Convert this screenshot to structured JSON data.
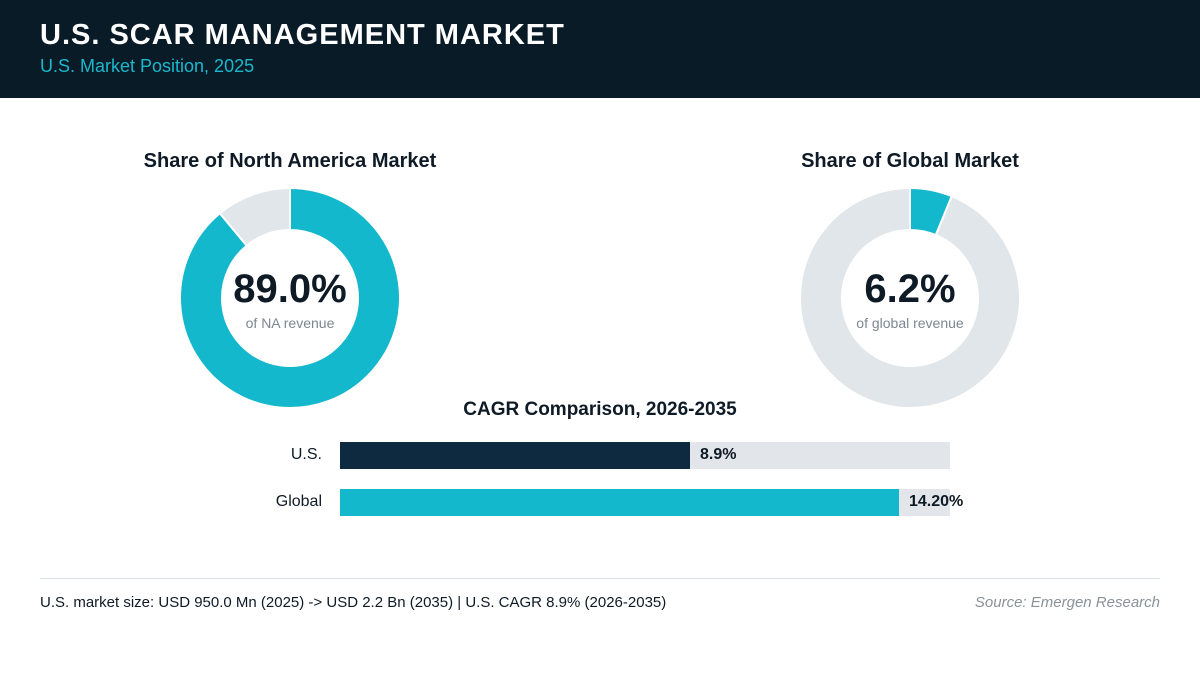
{
  "header": {
    "title": "U.S. SCAR MANAGEMENT MARKET",
    "subtitle": "U.S. Market Position, 2025"
  },
  "colors": {
    "header_bg": "#0a1b28",
    "accent": "#14b8cc",
    "dark_bar": "#0e2a40",
    "track": "#e1e6ea"
  },
  "chart_data": [
    {
      "type": "pie",
      "title": "Share of North America Market",
      "value_label": "89.0%",
      "caption": "of NA revenue",
      "share": 89.0,
      "slices": [
        {
          "value": 89.0,
          "color": "#14b8cc"
        },
        {
          "value": 11.0,
          "color": "#e1e6ea"
        }
      ]
    },
    {
      "type": "pie",
      "title": "Share of Global Market",
      "value_label": "6.2%",
      "caption": "of global revenue",
      "share": 6.2,
      "slices": [
        {
          "value": 6.2,
          "color": "#14b8cc"
        },
        {
          "value": 93.8,
          "color": "#e1e6ea"
        }
      ]
    },
    {
      "type": "bar",
      "title": "CAGR Comparison, 2026-2035",
      "categories": [
        "U.S.",
        "Global"
      ],
      "values": [
        8.9,
        14.2
      ],
      "value_labels": [
        "8.9%",
        "14.20%"
      ],
      "colors": [
        "#0e2a40",
        "#14b8cc"
      ],
      "xlim": [
        0,
        15.5
      ]
    }
  ],
  "footer": {
    "note": "U.S. market size: USD 950.0 Mn (2025) -> USD 2.2 Bn (2035)  |  U.S. CAGR 8.9% (2026-2035)",
    "source": "Source: Emergen Research"
  }
}
